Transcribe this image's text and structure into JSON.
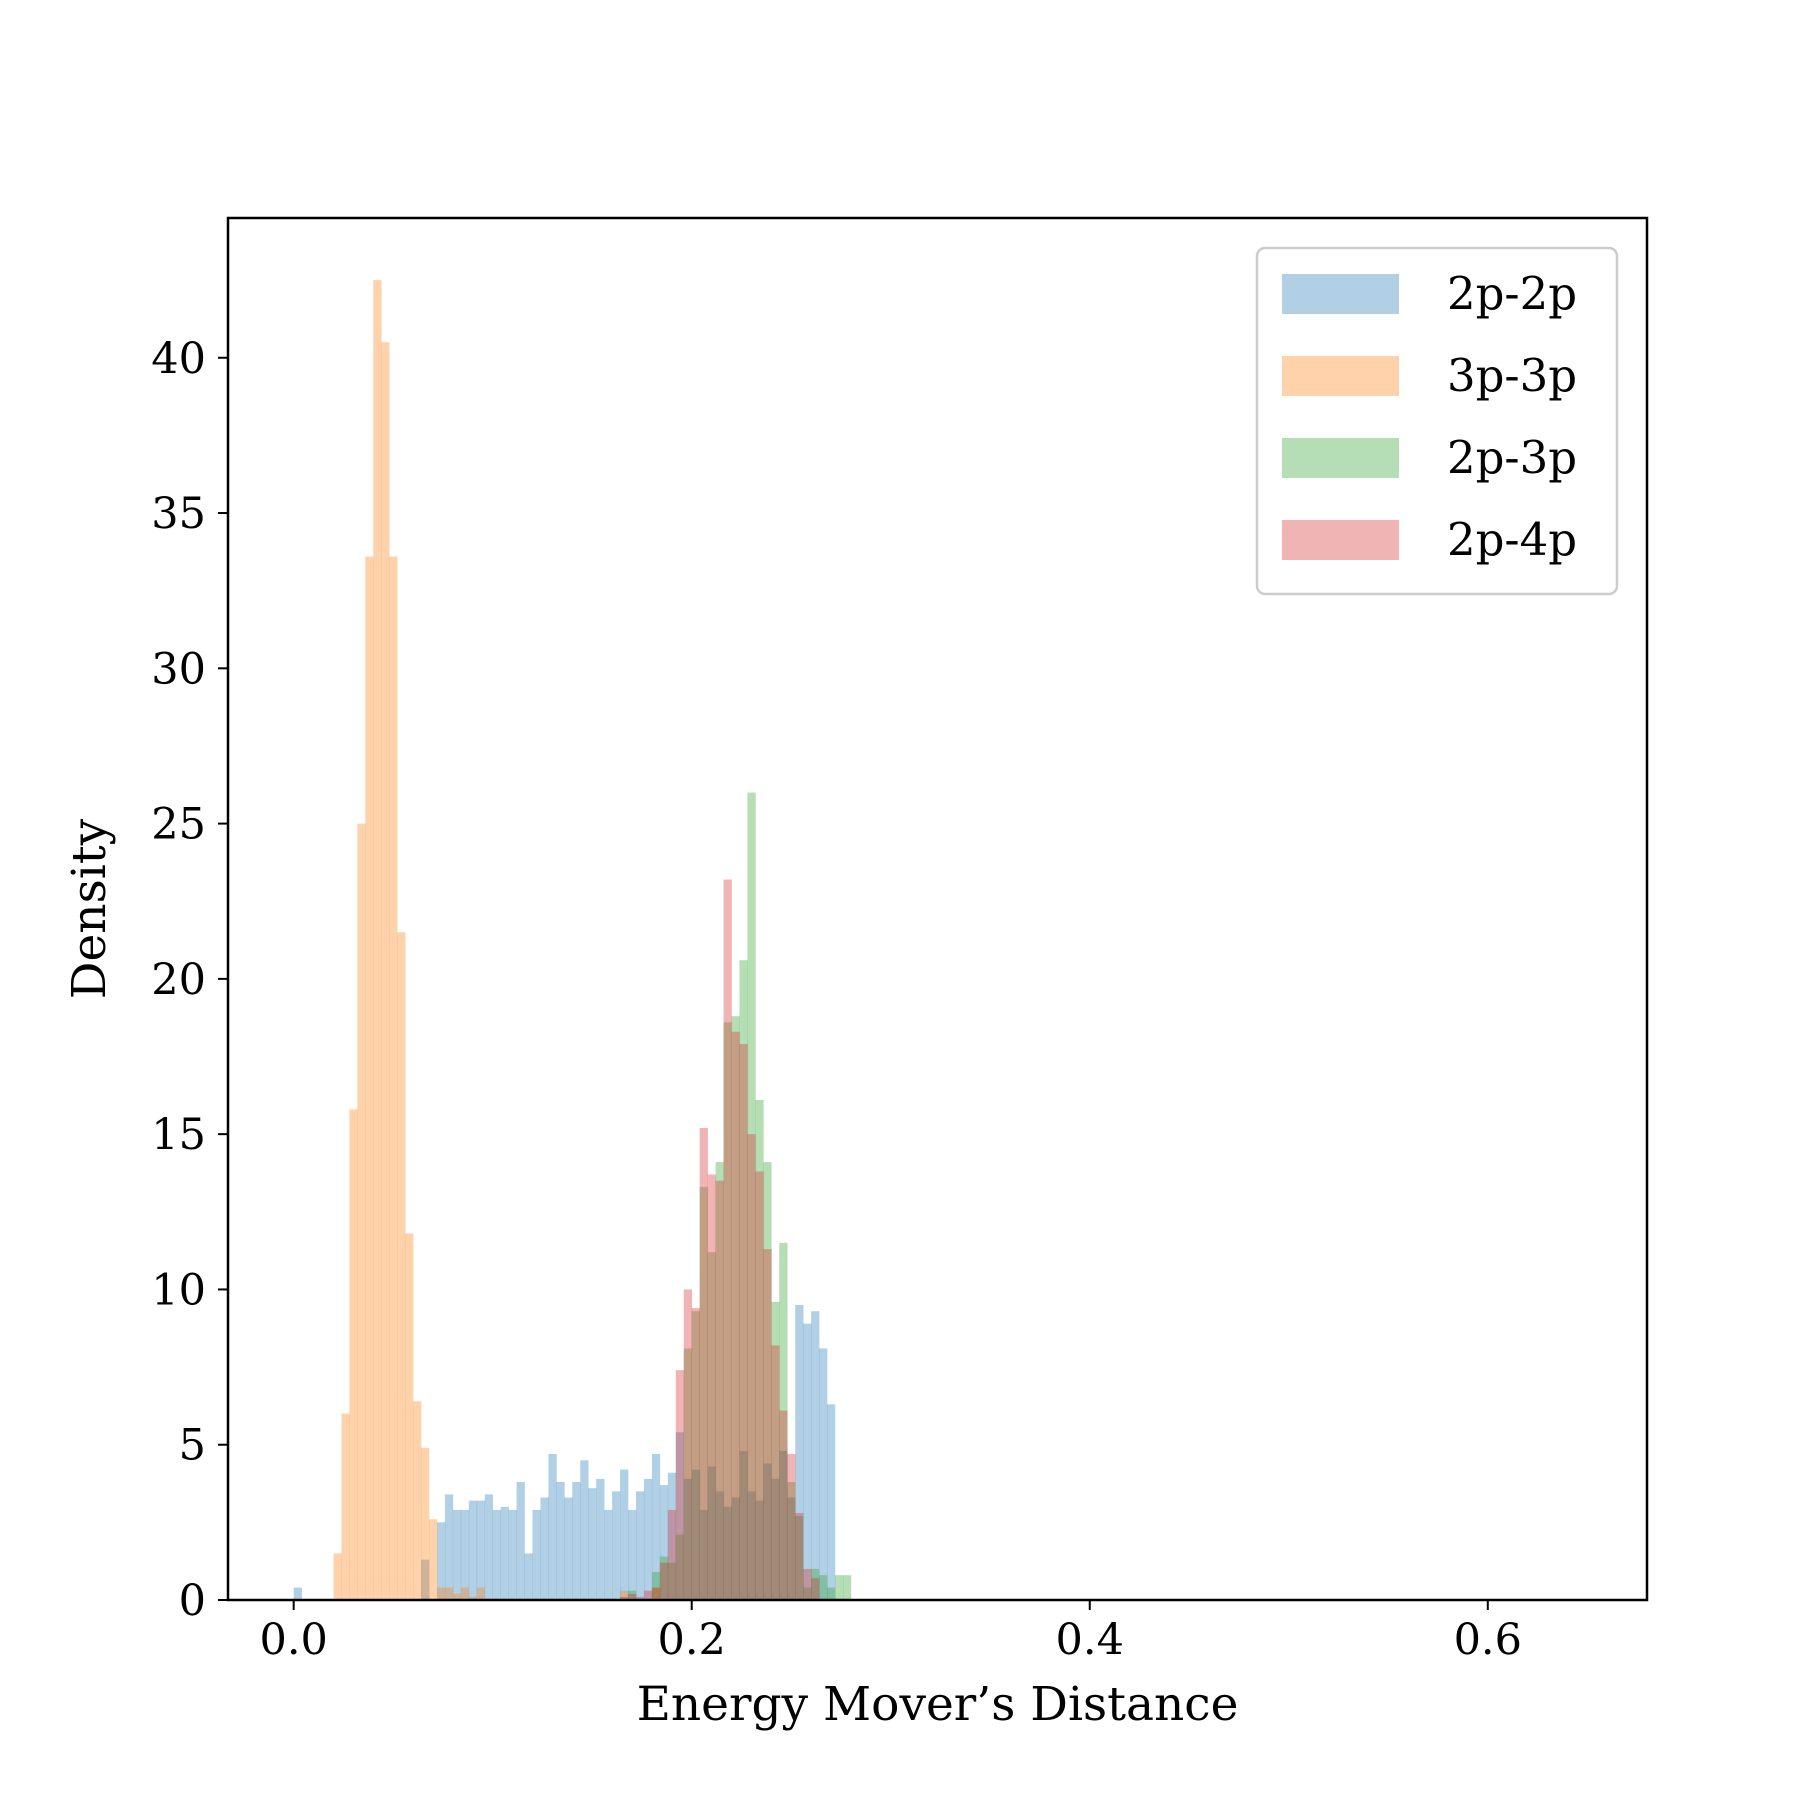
{
  "chart_data": {
    "type": "histogram",
    "xlabel": "Energy Mover’s Distance",
    "ylabel": "Density",
    "xlim": [
      -0.033,
      0.68
    ],
    "ylim": [
      0,
      44.5
    ],
    "xticks": [
      0.0,
      0.2,
      0.4,
      0.6
    ],
    "xtick_labels": [
      "0.0",
      "0.2",
      "0.4",
      "0.6"
    ],
    "yticks": [
      0,
      5,
      10,
      15,
      20,
      25,
      30,
      35,
      40
    ],
    "ytick_labels": [
      "0",
      "5",
      "10",
      "15",
      "20",
      "25",
      "30",
      "35",
      "40"
    ],
    "bin_width": 0.004,
    "alpha": 0.35,
    "grid": false,
    "legend_position": "top-right",
    "series": [
      {
        "name": "2p-2p",
        "color": "#1f77b4",
        "x_start": 0.072,
        "values": [
          2.5,
          3.4,
          2.9,
          2.9,
          3.2,
          3.2,
          3.4,
          2.9,
          3.0,
          2.9,
          3.8,
          1.5,
          2.9,
          3.3,
          4.7,
          3.8,
          3.3,
          3.8,
          4.5,
          3.6,
          3.9,
          2.9,
          3.5,
          4.2,
          2.9,
          3.5,
          3.9,
          4.7,
          3.7,
          4.1,
          5.4,
          3.9,
          4.2,
          2.9,
          4.3,
          3.5,
          3.0,
          3.3,
          4.8,
          3.5,
          3.2,
          4.4,
          3.9,
          4.8,
          3.3,
          9.5,
          8.9,
          9.3,
          8.1,
          6.3
        ],
        "extra_bins": [
          [
            0.0,
            0.4
          ],
          [
            0.064,
            1.3
          ]
        ]
      },
      {
        "name": "3p-3p",
        "color": "#ff7f0e",
        "x_start": 0.02,
        "values": [
          1.5,
          6.0,
          15.8,
          25.0,
          33.6,
          42.5,
          40.5,
          33.6,
          21.5,
          11.8,
          6.4,
          4.9,
          2.6,
          0.4,
          0.4,
          0.2,
          0.4,
          0.1,
          0.4
        ],
        "extra_bins": [
          [
            0.164,
            0.3
          ],
          [
            0.18,
            0.4
          ]
        ]
      },
      {
        "name": "2p-3p",
        "color": "#2ca02c",
        "x_start": 0.18,
        "values": [
          0.9,
          1.4,
          1.2,
          2.1,
          8.1,
          9.3,
          13.3,
          11.2,
          14.1,
          18.6,
          18.8,
          20.6,
          26.0,
          16.1,
          14.1,
          9.6,
          11.5,
          3.8,
          2.7,
          0.4,
          1.0,
          0.8,
          0.4,
          0.8,
          0.8
        ],
        "extra_bins": [
          [
            0.168,
            0.3
          ]
        ]
      },
      {
        "name": "2p-4p",
        "color": "#d62728",
        "x_start": 0.164,
        "values": [
          0.1,
          0.2,
          0.1,
          0.3,
          0.4,
          1.2,
          2.9,
          7.4,
          10.0,
          9.4,
          15.2,
          13.7,
          13.5,
          23.2,
          18.3,
          17.9,
          15.0,
          13.8,
          11.3,
          8.2,
          6.1,
          4.7,
          2.8,
          1.0,
          0.7
        ],
        "extra_bins": []
      }
    ]
  }
}
